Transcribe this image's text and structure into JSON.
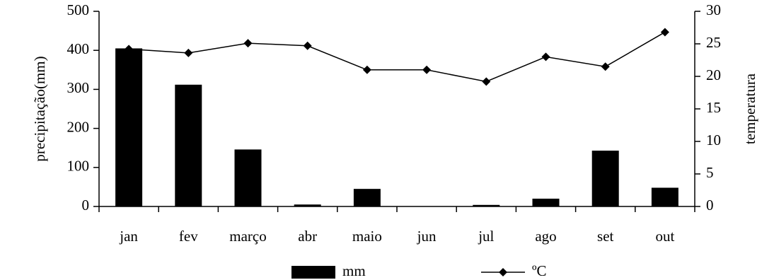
{
  "chart_data": {
    "type": "bar",
    "categories": [
      "jan",
      "fev",
      "março",
      "abr",
      "maio",
      "jun",
      "jul",
      "ago",
      "set",
      "out"
    ],
    "series": [
      {
        "name": "mm",
        "type": "bar",
        "color": "#000000",
        "values": [
          405,
          312,
          146,
          5,
          45,
          0,
          4,
          20,
          143,
          48
        ]
      },
      {
        "name": "ºC",
        "type": "line",
        "axis": "y2",
        "color": "#000000",
        "values": [
          24.2,
          23.6,
          25.1,
          24.7,
          21.0,
          21.0,
          19.2,
          23.0,
          21.5,
          26.8
        ]
      }
    ],
    "ylabel": "precipitação(mm)",
    "y2label": "temperatura",
    "ylim": [
      0,
      500
    ],
    "yticks": [
      0,
      100,
      200,
      300,
      400,
      500
    ],
    "y2lim": [
      0,
      30
    ],
    "y2ticks": [
      0,
      5,
      10,
      15,
      20,
      25,
      30
    ],
    "grid": false,
    "legend": "bottom"
  }
}
